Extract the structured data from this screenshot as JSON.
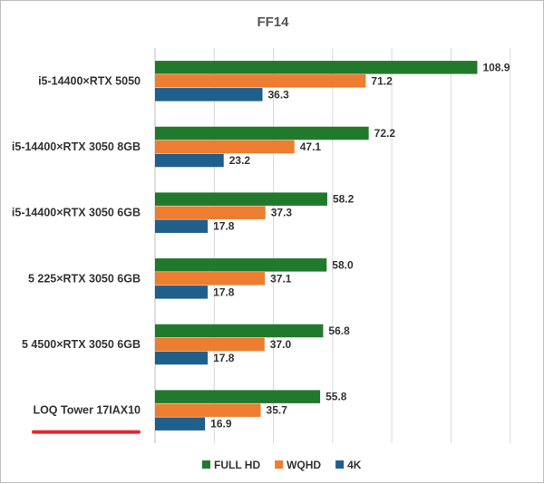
{
  "chart_data": {
    "type": "bar",
    "orientation": "horizontal",
    "title": "FF14",
    "categories": [
      "i5-14400×RTX 5050",
      "i5-14400×RTX 3050 8GB",
      "i5-14400×RTX 3050 6GB",
      "5 225×RTX 3050 6GB",
      "5 4500×RTX 3050 6GB",
      "LOQ Tower 17IAX10"
    ],
    "series": [
      {
        "name": "FULL HD",
        "color": "#217a2c",
        "values": [
          108.9,
          72.2,
          58.2,
          58.0,
          56.8,
          55.8
        ]
      },
      {
        "name": "WQHD",
        "color": "#ed7d31",
        "values": [
          71.2,
          47.1,
          37.3,
          37.1,
          37.0,
          35.7
        ]
      },
      {
        "name": "4K",
        "color": "#1f5f8b",
        "values": [
          36.3,
          23.2,
          17.8,
          17.8,
          17.8,
          16.9
        ]
      }
    ],
    "xlim": [
      0,
      125
    ],
    "gridlines": true,
    "legend_position": "bottom",
    "highlight": {
      "category": "LOQ Tower 17IAX10",
      "underline_color": "#e8262e"
    }
  }
}
